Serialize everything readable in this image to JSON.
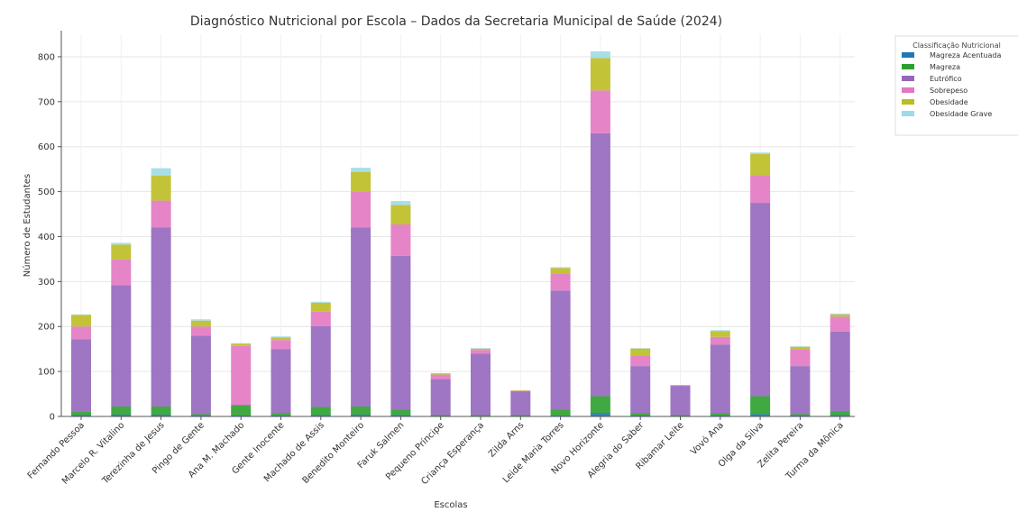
{
  "chart_data": {
    "type": "bar",
    "stacked": true,
    "title": "Diagnóstico Nutricional por Escola – Dados da Secretaria Municipal de Saúde (2024)",
    "xlabel": "Escolas",
    "ylabel": "Número de Estudantes",
    "ylim": [
      0,
      850
    ],
    "yticks": [
      0,
      100,
      200,
      300,
      400,
      500,
      600,
      700,
      800
    ],
    "grid": true,
    "legend_title": "Classificação Nutricional",
    "legend_position": "top-right, outside plot",
    "categories": [
      "Fernando Pessoa",
      "Marcelo R. Vitalino",
      "Terezinha de Jesus",
      "Pingo de Gente",
      "Ana M. Machado",
      "Gente Inocente",
      "Machado de Assis",
      "Benedito Monteiro",
      "Faruk Salmen",
      "Pequeno Príncipe",
      "Criança Esperança",
      "Zilda Arns",
      "Leide Maria Torres",
      "Novo Horizonte",
      "Alegria do Saber",
      "Ribamar Leite",
      "Vovó Ana",
      "Olga da Silva",
      "Zelita Pereira",
      "Turma da Mônica"
    ],
    "series": [
      {
        "name": "Magreza Acentuada",
        "color": "#1f77b4",
        "values": [
          3,
          4,
          4,
          2,
          2,
          2,
          3,
          4,
          3,
          1,
          1,
          1,
          2,
          8,
          2,
          1,
          2,
          5,
          2,
          3
        ]
      },
      {
        "name": "Magreza",
        "color": "#2ca02c",
        "values": [
          7,
          18,
          18,
          3,
          22,
          5,
          18,
          18,
          12,
          2,
          2,
          2,
          13,
          37,
          5,
          2,
          5,
          40,
          3,
          8
        ]
      },
      {
        "name": "Eutrófico",
        "color": "#9467bd",
        "values": [
          162,
          270,
          398,
          175,
          2,
          143,
          180,
          398,
          342,
          80,
          137,
          53,
          265,
          585,
          105,
          65,
          153,
          430,
          107,
          178
        ]
      },
      {
        "name": "Sobrepeso",
        "color": "#e377c2",
        "values": [
          28,
          57,
          60,
          20,
          131,
          20,
          32,
          80,
          70,
          10,
          8,
          1,
          38,
          95,
          24,
          1,
          17,
          62,
          38,
          33
        ]
      },
      {
        "name": "Obesidade",
        "color": "#bcbd22",
        "values": [
          26,
          33,
          56,
          13,
          5,
          6,
          20,
          44,
          43,
          3,
          3,
          1,
          12,
          72,
          15,
          1,
          13,
          47,
          5,
          5
        ]
      },
      {
        "name": "Obesidade Grave",
        "color": "#9edae5",
        "values": [
          1,
          4,
          16,
          3,
          1,
          2,
          2,
          9,
          9,
          0,
          1,
          0,
          2,
          15,
          1,
          0,
          2,
          3,
          1,
          2
        ]
      }
    ]
  }
}
